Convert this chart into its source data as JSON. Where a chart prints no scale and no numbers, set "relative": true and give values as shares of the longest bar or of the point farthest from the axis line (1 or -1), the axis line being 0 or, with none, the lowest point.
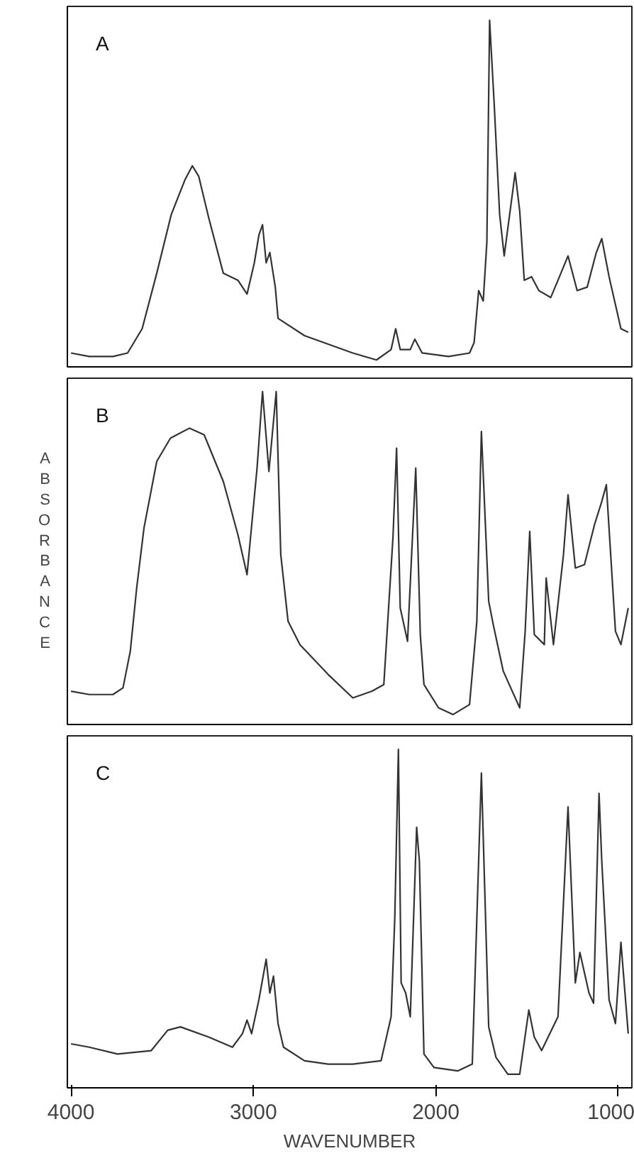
{
  "chart_data": [
    {
      "type": "line",
      "relative": true,
      "annotations": [
        "A"
      ],
      "xlim": [
        4020,
        925
      ],
      "tick_labels": false,
      "grid": false,
      "series": [
        {
          "color": "#333333",
          "x": [
            4000,
            3900,
            3770,
            3690,
            3610,
            3530,
            3450,
            3375,
            3335,
            3300,
            3245,
            3165,
            3085,
            3035,
            2995,
            2970,
            2950,
            2930,
            2910,
            2880,
            2865,
            2720,
            2455,
            2325,
            2245,
            2220,
            2195,
            2140,
            2115,
            2075,
            1930,
            1815,
            1790,
            1765,
            1740,
            1720,
            1705,
            1680,
            1650,
            1625,
            1565,
            1540,
            1515,
            1475,
            1435,
            1370,
            1330,
            1275,
            1225,
            1170,
            1120,
            1090,
            1050,
            985,
            945
          ],
          "values": [
            0.04,
            0.03,
            0.03,
            0.04,
            0.11,
            0.27,
            0.44,
            0.54,
            0.58,
            0.55,
            0.43,
            0.27,
            0.25,
            0.21,
            0.3,
            0.38,
            0.41,
            0.3,
            0.33,
            0.23,
            0.14,
            0.09,
            0.04,
            0.02,
            0.05,
            0.11,
            0.05,
            0.05,
            0.08,
            0.04,
            0.03,
            0.04,
            0.07,
            0.22,
            0.19,
            0.36,
            1.0,
            0.76,
            0.44,
            0.32,
            0.56,
            0.45,
            0.25,
            0.26,
            0.22,
            0.2,
            0.25,
            0.32,
            0.22,
            0.23,
            0.33,
            0.37,
            0.26,
            0.11,
            0.1
          ]
        }
      ]
    },
    {
      "type": "line",
      "relative": true,
      "annotations": [
        "B"
      ],
      "ylabel": "ABSORBANCE",
      "xlim": [
        4020,
        925
      ],
      "tick_labels": false,
      "grid": false,
      "series": [
        {
          "color": "#333333",
          "x": [
            4000,
            3900,
            3770,
            3715,
            3675,
            3640,
            3600,
            3530,
            3455,
            3350,
            3270,
            3165,
            3085,
            3035,
            2980,
            2950,
            2915,
            2875,
            2850,
            2810,
            2745,
            2590,
            2455,
            2350,
            2285,
            2235,
            2215,
            2195,
            2155,
            2110,
            2085,
            2065,
            1985,
            1905,
            1815,
            1775,
            1750,
            1710,
            1685,
            1630,
            1540,
            1510,
            1485,
            1460,
            1405,
            1395,
            1355,
            1300,
            1275,
            1235,
            1185,
            1130,
            1090,
            1065,
            1015,
            985,
            945
          ],
          "values": [
            0.1,
            0.09,
            0.09,
            0.11,
            0.22,
            0.41,
            0.59,
            0.79,
            0.86,
            0.89,
            0.87,
            0.73,
            0.57,
            0.45,
            0.77,
            1.0,
            0.76,
            1.0,
            0.51,
            0.31,
            0.24,
            0.15,
            0.08,
            0.1,
            0.12,
            0.56,
            0.83,
            0.35,
            0.25,
            0.77,
            0.27,
            0.12,
            0.05,
            0.03,
            0.06,
            0.31,
            0.88,
            0.37,
            0.3,
            0.16,
            0.05,
            0.28,
            0.58,
            0.27,
            0.24,
            0.44,
            0.24,
            0.51,
            0.69,
            0.47,
            0.48,
            0.6,
            0.67,
            0.72,
            0.28,
            0.24,
            0.35
          ]
        }
      ]
    },
    {
      "type": "line",
      "relative": true,
      "annotations": [
        "C"
      ],
      "xlabel": "WAVENUMBER",
      "xlim": [
        4020,
        925
      ],
      "xticks": [
        4000,
        3000,
        2000,
        1000
      ],
      "tick_labels": "x",
      "grid": false,
      "series": [
        {
          "color": "#333333",
          "x": [
            4000,
            3900,
            3745,
            3560,
            3470,
            3400,
            3245,
            3115,
            3060,
            3035,
            3010,
            2970,
            2930,
            2910,
            2890,
            2865,
            2835,
            2720,
            2590,
            2455,
            2300,
            2245,
            2225,
            2205,
            2190,
            2165,
            2140,
            2105,
            2090,
            2065,
            2010,
            1880,
            1800,
            1750,
            1710,
            1670,
            1605,
            1540,
            1490,
            1460,
            1420,
            1330,
            1275,
            1235,
            1210,
            1160,
            1135,
            1105,
            1090,
            1050,
            1015,
            985,
            945
          ],
          "values": [
            0.13,
            0.12,
            0.1,
            0.11,
            0.17,
            0.18,
            0.15,
            0.12,
            0.16,
            0.2,
            0.16,
            0.26,
            0.38,
            0.28,
            0.33,
            0.19,
            0.12,
            0.08,
            0.07,
            0.07,
            0.08,
            0.21,
            0.5,
            1.0,
            0.31,
            0.28,
            0.21,
            0.77,
            0.67,
            0.1,
            0.06,
            0.05,
            0.07,
            0.93,
            0.18,
            0.09,
            0.04,
            0.04,
            0.23,
            0.15,
            0.11,
            0.21,
            0.83,
            0.31,
            0.4,
            0.28,
            0.25,
            0.87,
            0.67,
            0.26,
            0.19,
            0.43,
            0.16
          ]
        }
      ]
    }
  ]
}
